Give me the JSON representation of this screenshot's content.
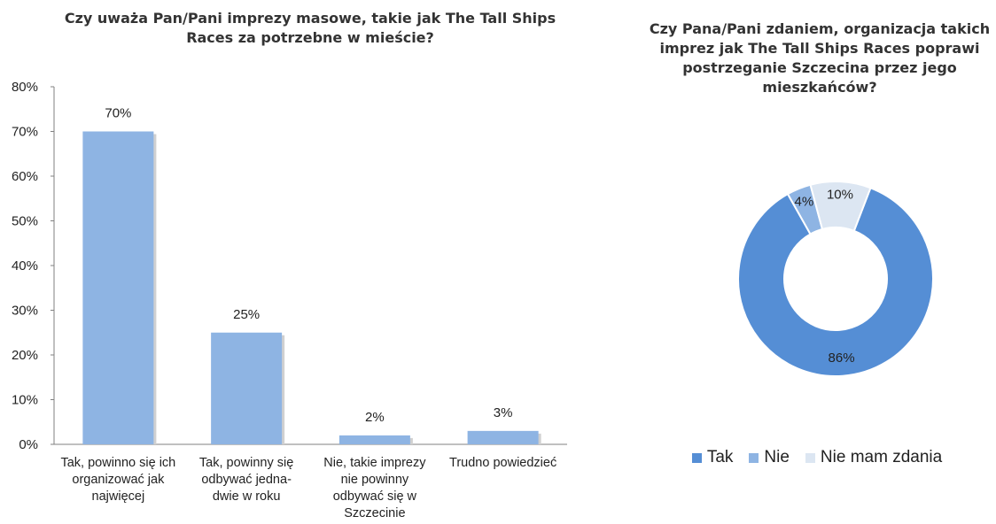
{
  "chart_data": [
    {
      "type": "bar",
      "title": "Czy uważa Pan/Pani imprezy masowe, takie jak The Tall Ships Races za potrzebne w mieście?",
      "categories": [
        [
          "Tak, powinno się ich",
          "organizować jak",
          "najwięcej"
        ],
        [
          "Tak, powinny się",
          "odbywać jedna-",
          "dwie w roku"
        ],
        [
          "Nie, takie imprezy",
          "nie powinny",
          "odbywać się w",
          "Szczecinie"
        ],
        [
          "Trudno powiedzieć"
        ]
      ],
      "values": [
        70,
        25,
        2,
        3
      ],
      "value_labels": [
        "70%",
        "25%",
        "2%",
        "3%"
      ],
      "ylim": [
        0,
        80
      ],
      "yticks": [
        0,
        10,
        20,
        30,
        40,
        50,
        60,
        70,
        80
      ],
      "ytick_labels": [
        "0%",
        "10%",
        "20%",
        "30%",
        "40%",
        "50%",
        "60%",
        "70%",
        "80%"
      ],
      "grid": false,
      "color": "#8EB4E3"
    },
    {
      "type": "pie",
      "variant": "doughnut",
      "title": "Czy Pana/Pani zdaniem, organizacja takich imprez jak The Tall Ships Races poprawi postrzeganie Szczecina przez jego mieszkańców?",
      "labels": [
        "Tak",
        "Nie",
        "Nie mam zdania"
      ],
      "values": [
        86,
        4,
        10
      ],
      "value_labels": [
        "86%",
        "4%",
        "10%"
      ],
      "colors": [
        "#558ED5",
        "#8EB4E3",
        "#DCE6F2"
      ],
      "legend": "bottom"
    }
  ]
}
